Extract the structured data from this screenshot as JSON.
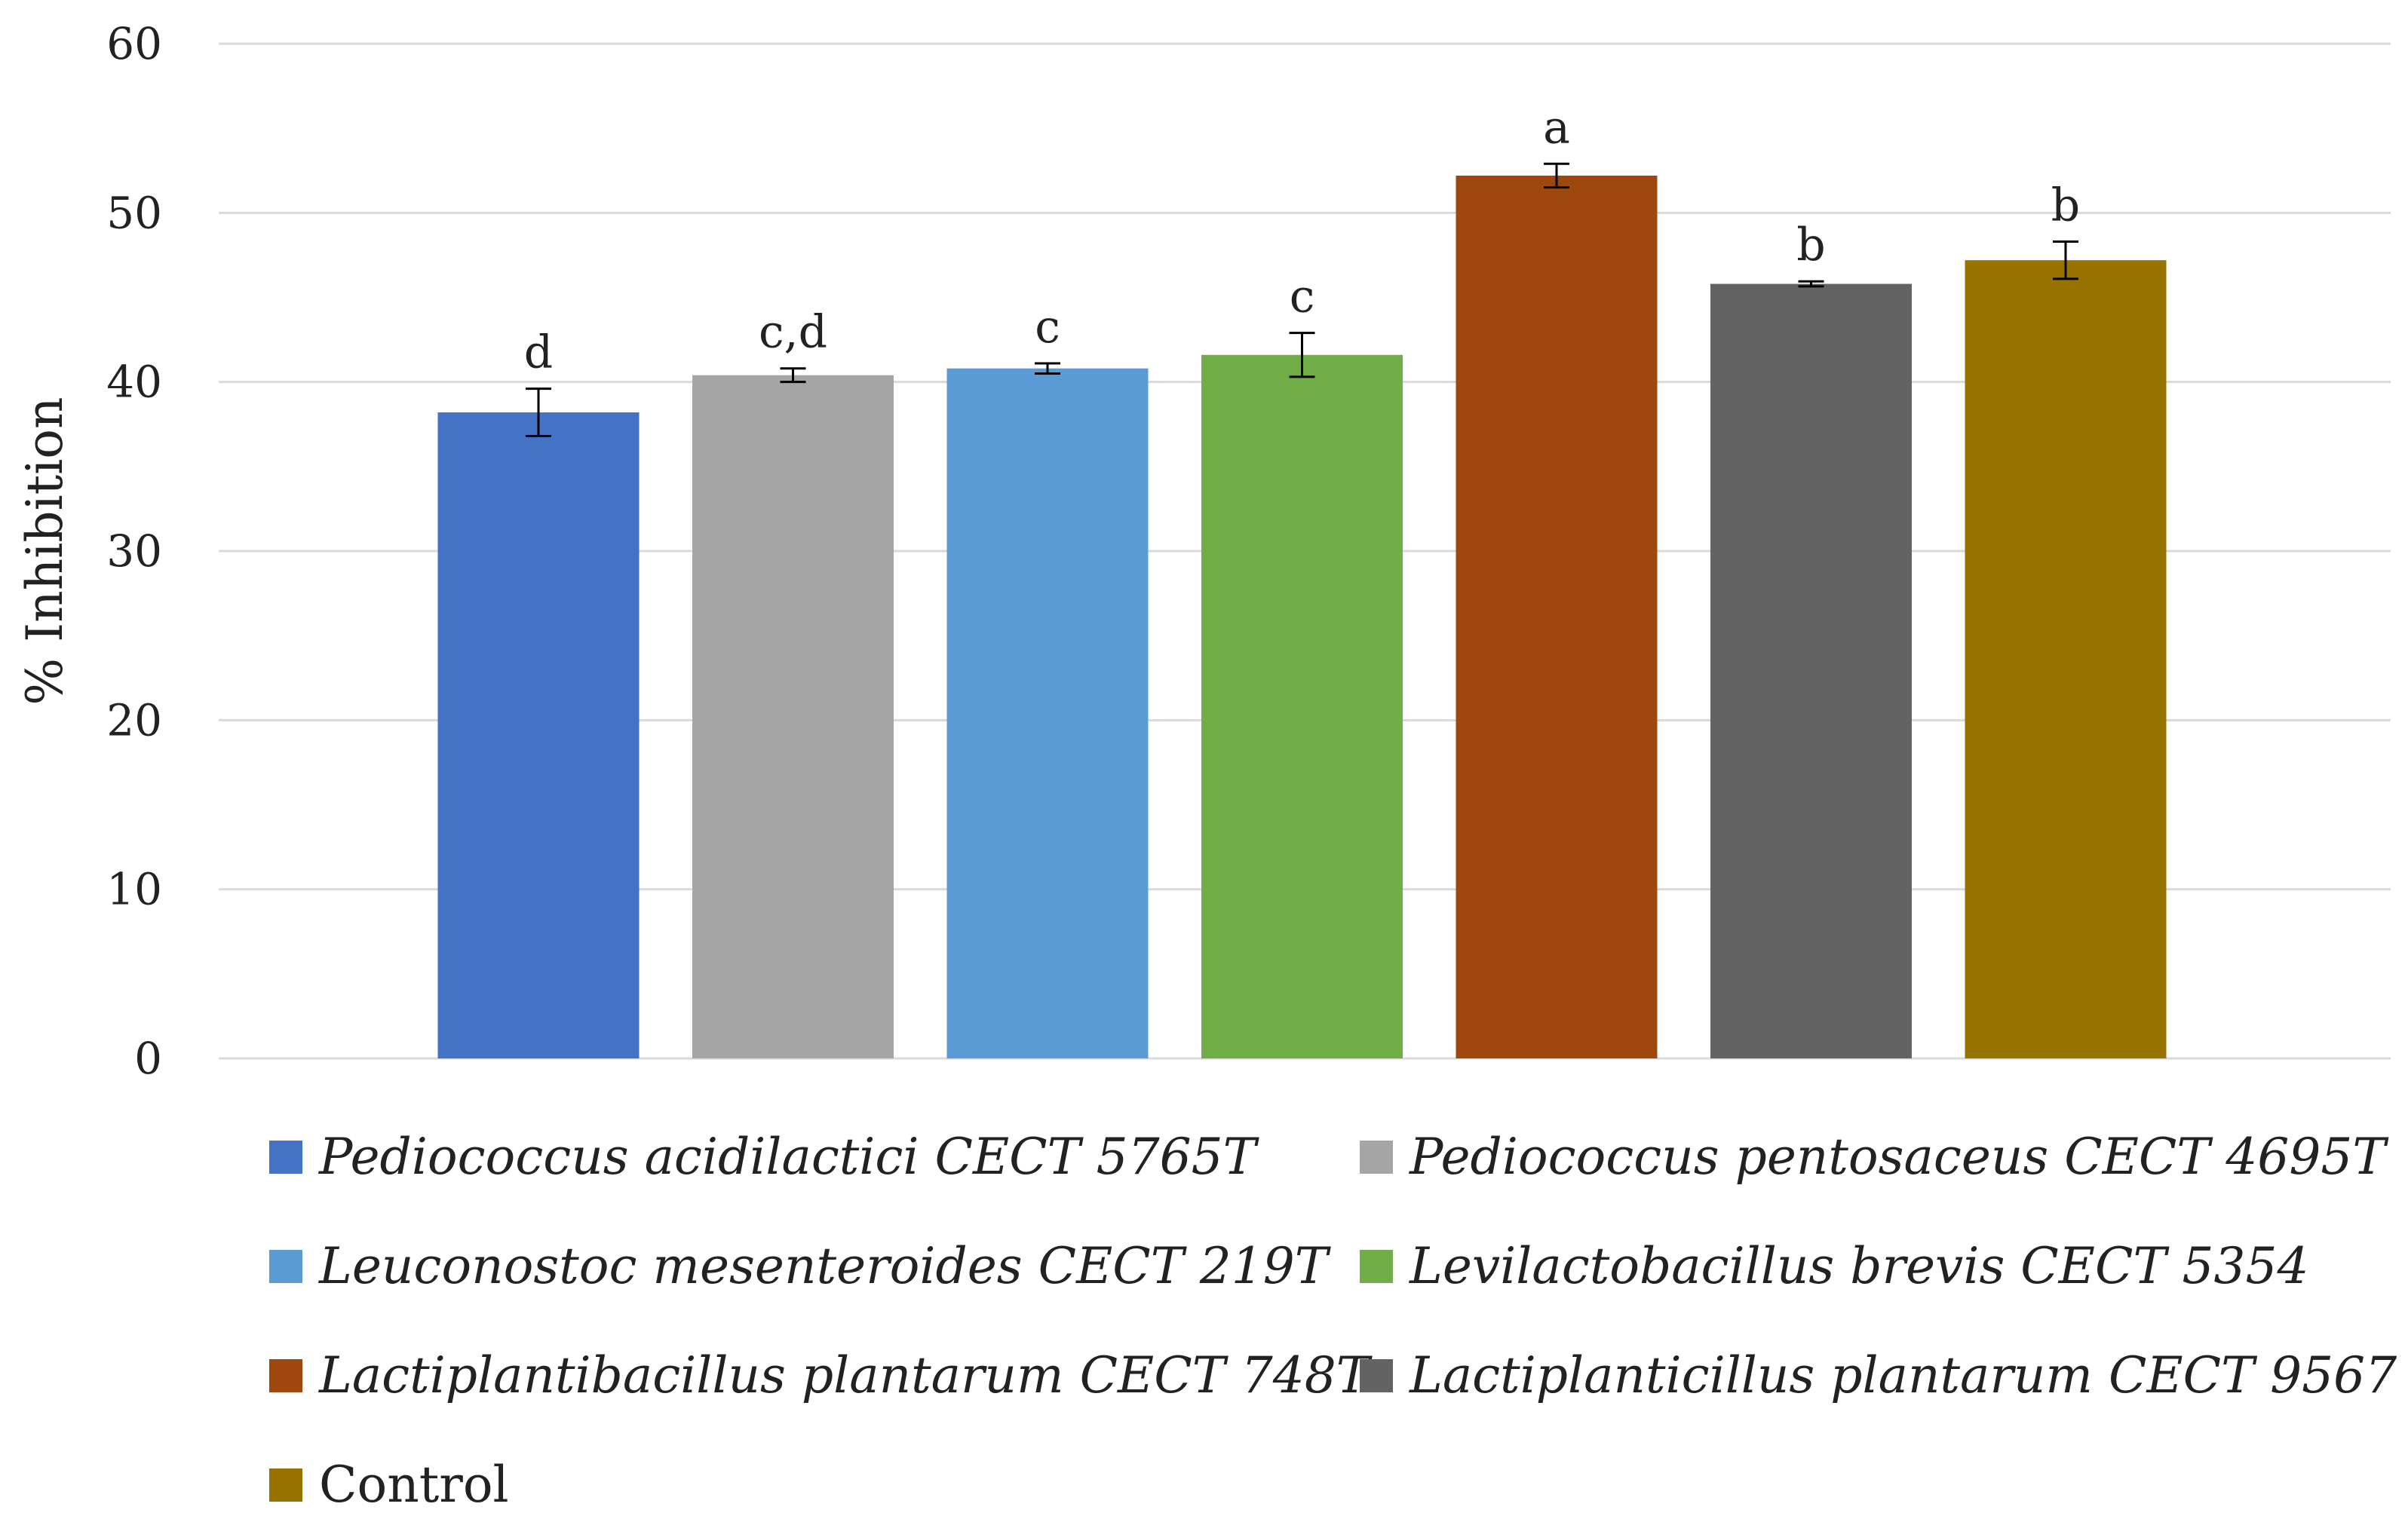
{
  "chart_data": {
    "type": "bar",
    "title": "",
    "xlabel": "",
    "ylabel": "% Inhibition",
    "ylim": [
      0,
      60
    ],
    "yticks": [
      0,
      10,
      20,
      30,
      40,
      50,
      60
    ],
    "grid": true,
    "legend_position": "bottom",
    "series": [
      {
        "name": "Pediococcus acidilactici CECT 5765T",
        "value": 38.2,
        "error": 1.4,
        "significance": "d",
        "color": "#4472C4",
        "italic": true
      },
      {
        "name": "Pediococcus pentosaceus CECT 4695T",
        "value": 40.4,
        "error": 0.4,
        "significance": "c,d",
        "color": "#A5A5A5",
        "italic": true
      },
      {
        "name": "Leuconostoc mesenteroides CECT 219T",
        "value": 40.8,
        "error": 0.3,
        "significance": "c",
        "color": "#5B9BD5",
        "italic": true
      },
      {
        "name": "Levilactobacillus brevis CECT 5354",
        "value": 41.6,
        "error": 1.3,
        "significance": "c",
        "color": "#70AD47",
        "italic": true
      },
      {
        "name": "Lactiplantibacillus plantarum CECT 748T",
        "value": 52.2,
        "error": 0.7,
        "significance": "a",
        "color": "#9E480E",
        "italic": true
      },
      {
        "name": "Lactiplanticillus plantarum CECT 9567",
        "value": 45.8,
        "error": 0.15,
        "significance": "b",
        "color": "#636363",
        "italic": true
      },
      {
        "name": "Control",
        "value": 47.2,
        "error": 1.1,
        "significance": "b",
        "color": "#997300",
        "italic": false
      }
    ]
  }
}
